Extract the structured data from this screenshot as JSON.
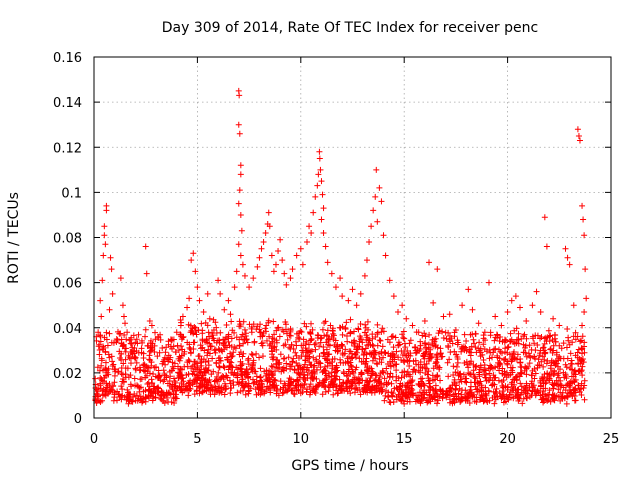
{
  "chart_data": {
    "type": "scatter",
    "title": "Day 309 of 2014, Rate Of TEC Index for receiver penc",
    "xlabel": "GPS time / hours",
    "ylabel": "ROTI / TECUs",
    "xlim": [
      0,
      25
    ],
    "ylim": [
      0,
      0.16
    ],
    "x_ticks": [
      0,
      5,
      10,
      15,
      20,
      25
    ],
    "x_tick_labels": [
      "0",
      "5",
      "10",
      "15",
      "20",
      "25"
    ],
    "y_ticks": [
      0,
      0.02,
      0.04,
      0.06,
      0.08,
      0.1,
      0.12,
      0.14,
      0.16
    ],
    "y_tick_labels": [
      "0",
      "0.02",
      "0.04",
      "0.06",
      "0.08",
      "0.1",
      "0.12",
      "0.14",
      "0.16"
    ],
    "grid": true,
    "marker": "plus",
    "series": [
      {
        "name": "ROTI",
        "color": "#ff0000",
        "note": "representative subset of plotted points (x in hours, y in TECU/min)",
        "points": [
          [
            0.3,
            0.052
          ],
          [
            0.4,
            0.061
          ],
          [
            0.5,
            0.085
          ],
          [
            0.5,
            0.081
          ],
          [
            0.55,
            0.077
          ],
          [
            0.6,
            0.094
          ],
          [
            0.6,
            0.092
          ],
          [
            0.45,
            0.072
          ],
          [
            0.35,
            0.045
          ],
          [
            0.2,
            0.038
          ],
          [
            0.8,
            0.071
          ],
          [
            0.85,
            0.066
          ],
          [
            0.9,
            0.055
          ],
          [
            0.75,
            0.048
          ],
          [
            1.1,
            0.035
          ],
          [
            1.3,
            0.062
          ],
          [
            1.4,
            0.05
          ],
          [
            1.45,
            0.045
          ],
          [
            1.5,
            0.042
          ],
          [
            1.6,
            0.038
          ],
          [
            2.1,
            0.033
          ],
          [
            2.3,
            0.029
          ],
          [
            2.5,
            0.076
          ],
          [
            2.55,
            0.064
          ],
          [
            2.7,
            0.043
          ],
          [
            2.8,
            0.041
          ],
          [
            3.1,
            0.036
          ],
          [
            3.3,
            0.031
          ],
          [
            3.6,
            0.034
          ],
          [
            4.0,
            0.038
          ],
          [
            4.2,
            0.041
          ],
          [
            4.3,
            0.045
          ],
          [
            4.5,
            0.049
          ],
          [
            4.6,
            0.053
          ],
          [
            4.7,
            0.07
          ],
          [
            4.8,
            0.073
          ],
          [
            4.9,
            0.065
          ],
          [
            5.0,
            0.058
          ],
          [
            5.1,
            0.052
          ],
          [
            5.3,
            0.047
          ],
          [
            5.5,
            0.055
          ],
          [
            5.6,
            0.044
          ],
          [
            5.8,
            0.039
          ],
          [
            6.0,
            0.061
          ],
          [
            6.1,
            0.055
          ],
          [
            6.3,
            0.048
          ],
          [
            6.5,
            0.052
          ],
          [
            6.6,
            0.046
          ],
          [
            6.8,
            0.058
          ],
          [
            6.9,
            0.065
          ],
          [
            7.0,
            0.145
          ],
          [
            7.02,
            0.143
          ],
          [
            7.0,
            0.13
          ],
          [
            7.05,
            0.126
          ],
          [
            7.1,
            0.112
          ],
          [
            7.1,
            0.108
          ],
          [
            7.05,
            0.101
          ],
          [
            7.0,
            0.095
          ],
          [
            7.1,
            0.09
          ],
          [
            7.15,
            0.083
          ],
          [
            7.0,
            0.077
          ],
          [
            7.1,
            0.072
          ],
          [
            7.2,
            0.068
          ],
          [
            7.3,
            0.063
          ],
          [
            7.5,
            0.058
          ],
          [
            7.7,
            0.062
          ],
          [
            7.9,
            0.067
          ],
          [
            8.0,
            0.071
          ],
          [
            8.1,
            0.075
          ],
          [
            8.2,
            0.078
          ],
          [
            8.3,
            0.082
          ],
          [
            8.4,
            0.086
          ],
          [
            8.45,
            0.091
          ],
          [
            8.5,
            0.085
          ],
          [
            8.6,
            0.072
          ],
          [
            8.7,
            0.065
          ],
          [
            8.8,
            0.068
          ],
          [
            8.9,
            0.074
          ],
          [
            9.0,
            0.079
          ],
          [
            9.1,
            0.07
          ],
          [
            9.2,
            0.064
          ],
          [
            9.3,
            0.059
          ],
          [
            9.5,
            0.062
          ],
          [
            9.6,
            0.066
          ],
          [
            9.8,
            0.072
          ],
          [
            10.0,
            0.075
          ],
          [
            10.1,
            0.068
          ],
          [
            10.3,
            0.078
          ],
          [
            10.4,
            0.085
          ],
          [
            10.5,
            0.082
          ],
          [
            10.6,
            0.091
          ],
          [
            10.7,
            0.098
          ],
          [
            10.8,
            0.103
          ],
          [
            10.85,
            0.108
          ],
          [
            10.9,
            0.118
          ],
          [
            10.92,
            0.115
          ],
          [
            10.95,
            0.11
          ],
          [
            11.0,
            0.105
          ],
          [
            11.05,
            0.099
          ],
          [
            11.1,
            0.093
          ],
          [
            11.0,
            0.088
          ],
          [
            11.1,
            0.082
          ],
          [
            11.2,
            0.076
          ],
          [
            11.3,
            0.069
          ],
          [
            11.5,
            0.064
          ],
          [
            11.7,
            0.058
          ],
          [
            11.9,
            0.062
          ],
          [
            12.0,
            0.054
          ],
          [
            12.3,
            0.052
          ],
          [
            12.5,
            0.057
          ],
          [
            12.7,
            0.05
          ],
          [
            12.9,
            0.055
          ],
          [
            13.1,
            0.063
          ],
          [
            13.2,
            0.07
          ],
          [
            13.3,
            0.078
          ],
          [
            13.4,
            0.085
          ],
          [
            13.5,
            0.092
          ],
          [
            13.6,
            0.098
          ],
          [
            13.65,
            0.11
          ],
          [
            13.7,
            0.087
          ],
          [
            13.8,
            0.102
          ],
          [
            13.9,
            0.096
          ],
          [
            14.0,
            0.081
          ],
          [
            14.1,
            0.072
          ],
          [
            14.3,
            0.061
          ],
          [
            14.5,
            0.054
          ],
          [
            14.7,
            0.047
          ],
          [
            14.9,
            0.05
          ],
          [
            15.1,
            0.044
          ],
          [
            15.4,
            0.041
          ],
          [
            15.7,
            0.038
          ],
          [
            16.0,
            0.043
          ],
          [
            16.2,
            0.069
          ],
          [
            16.4,
            0.051
          ],
          [
            16.6,
            0.066
          ],
          [
            16.9,
            0.045
          ],
          [
            17.2,
            0.046
          ],
          [
            17.5,
            0.039
          ],
          [
            17.8,
            0.05
          ],
          [
            18.1,
            0.057
          ],
          [
            18.3,
            0.048
          ],
          [
            18.6,
            0.042
          ],
          [
            18.9,
            0.038
          ],
          [
            19.1,
            0.06
          ],
          [
            19.4,
            0.045
          ],
          [
            19.7,
            0.041
          ],
          [
            20.0,
            0.047
          ],
          [
            20.2,
            0.052
          ],
          [
            20.4,
            0.054
          ],
          [
            20.6,
            0.049
          ],
          [
            20.9,
            0.043
          ],
          [
            21.2,
            0.05
          ],
          [
            21.4,
            0.056
          ],
          [
            21.6,
            0.047
          ],
          [
            21.8,
            0.089
          ],
          [
            21.9,
            0.076
          ],
          [
            22.2,
            0.044
          ],
          [
            22.5,
            0.041
          ],
          [
            22.8,
            0.075
          ],
          [
            22.9,
            0.071
          ],
          [
            23.0,
            0.068
          ],
          [
            23.2,
            0.05
          ],
          [
            23.4,
            0.128
          ],
          [
            23.45,
            0.125
          ],
          [
            23.5,
            0.123
          ],
          [
            23.6,
            0.094
          ],
          [
            23.65,
            0.088
          ],
          [
            23.7,
            0.081
          ],
          [
            23.75,
            0.066
          ],
          [
            23.8,
            0.053
          ],
          [
            23.7,
            0.047
          ],
          [
            23.6,
            0.041
          ]
        ]
      }
    ]
  }
}
